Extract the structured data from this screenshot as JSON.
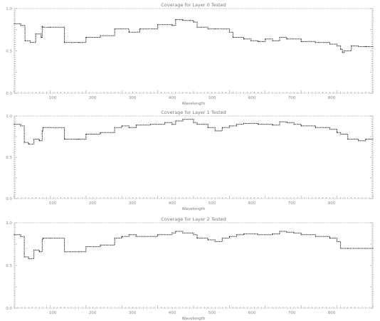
{
  "chart_data": [
    {
      "type": "line",
      "title": "Coverage for Layer 0 Tested",
      "xlabel": "Wavelength",
      "ylabel": "",
      "xlim": [
        0,
        1000
      ],
      "ylim": [
        0,
        1
      ],
      "x_ticks": [
        "100",
        "200",
        "300",
        "400",
        "500",
        "600",
        "700",
        "800"
      ],
      "y_ticks": [
        "0.0",
        "0.5",
        "1.0"
      ],
      "grid": false,
      "series": [
        {
          "x": [
            0,
            18,
            30,
            45,
            60,
            75,
            78,
            80,
            100,
            140,
            180,
            200,
            240,
            280,
            300,
            320,
            350,
            400,
            440,
            450,
            470,
            490,
            500,
            510,
            540,
            560,
            600,
            610,
            640,
            660,
            680,
            700,
            720,
            740,
            760,
            800,
            840,
            880,
            900,
            910,
            915,
            920,
            940,
            960,
            980,
            1000
          ],
          "y": [
            0.82,
            0.8,
            0.62,
            0.6,
            0.7,
            0.66,
            0.79,
            0.78,
            0.78,
            0.6,
            0.6,
            0.66,
            0.68,
            0.76,
            0.76,
            0.72,
            0.76,
            0.81,
            0.8,
            0.87,
            0.86,
            0.86,
            0.84,
            0.78,
            0.76,
            0.76,
            0.72,
            0.66,
            0.64,
            0.62,
            0.61,
            0.64,
            0.62,
            0.66,
            0.64,
            0.61,
            0.6,
            0.58,
            0.56,
            0.52,
            0.48,
            0.5,
            0.56,
            0.55,
            0.55,
            0.55
          ]
        }
      ]
    },
    {
      "type": "line",
      "title": "Coverage for Layer 1 Tested",
      "xlabel": "Wavelength",
      "ylabel": "",
      "xlim": [
        0,
        1000
      ],
      "ylim": [
        0,
        1
      ],
      "x_ticks": [
        "100",
        "200",
        "300",
        "400",
        "500",
        "600",
        "700",
        "800"
      ],
      "y_ticks": [
        "0.0",
        "0.5",
        "1.0"
      ],
      "grid": false,
      "series": [
        {
          "x": [
            0,
            18,
            28,
            40,
            55,
            70,
            78,
            80,
            100,
            140,
            180,
            200,
            240,
            280,
            300,
            320,
            340,
            380,
            420,
            440,
            450,
            470,
            500,
            510,
            540,
            560,
            580,
            600,
            620,
            640,
            680,
            720,
            740,
            760,
            780,
            800,
            840,
            880,
            900,
            910,
            930,
            960,
            980,
            1000
          ],
          "y": [
            0.9,
            0.88,
            0.68,
            0.66,
            0.72,
            0.7,
            0.82,
            0.86,
            0.86,
            0.72,
            0.72,
            0.78,
            0.8,
            0.86,
            0.88,
            0.86,
            0.89,
            0.9,
            0.92,
            0.9,
            0.94,
            0.96,
            0.92,
            0.9,
            0.86,
            0.82,
            0.86,
            0.88,
            0.9,
            0.91,
            0.9,
            0.89,
            0.93,
            0.92,
            0.9,
            0.88,
            0.86,
            0.84,
            0.8,
            0.78,
            0.72,
            0.7,
            0.72,
            0.72
          ]
        }
      ]
    },
    {
      "type": "line",
      "title": "Coverage for Layer 2 Tested",
      "xlabel": "Wavelength",
      "ylabel": "",
      "xlim": [
        0,
        1000
      ],
      "ylim": [
        0,
        1
      ],
      "x_ticks": [
        "100",
        "200",
        "300",
        "400",
        "500",
        "600",
        "700",
        "800"
      ],
      "y_ticks": [
        "0.0",
        "0.5",
        "1.0"
      ],
      "grid": false,
      "series": [
        {
          "x": [
            0,
            18,
            28,
            40,
            55,
            70,
            78,
            80,
            100,
            140,
            180,
            200,
            240,
            280,
            300,
            320,
            340,
            400,
            440,
            450,
            470,
            500,
            510,
            540,
            560,
            580,
            600,
            620,
            640,
            680,
            720,
            740,
            760,
            780,
            800,
            840,
            880,
            900,
            910,
            930,
            960,
            980,
            1000
          ],
          "y": [
            0.86,
            0.84,
            0.6,
            0.58,
            0.68,
            0.66,
            0.8,
            0.82,
            0.82,
            0.66,
            0.66,
            0.72,
            0.74,
            0.82,
            0.84,
            0.86,
            0.84,
            0.86,
            0.88,
            0.9,
            0.88,
            0.86,
            0.82,
            0.8,
            0.78,
            0.82,
            0.84,
            0.86,
            0.87,
            0.86,
            0.87,
            0.9,
            0.89,
            0.88,
            0.86,
            0.84,
            0.82,
            0.78,
            0.7,
            0.7,
            0.7,
            0.7,
            0.7
          ]
        }
      ]
    }
  ]
}
